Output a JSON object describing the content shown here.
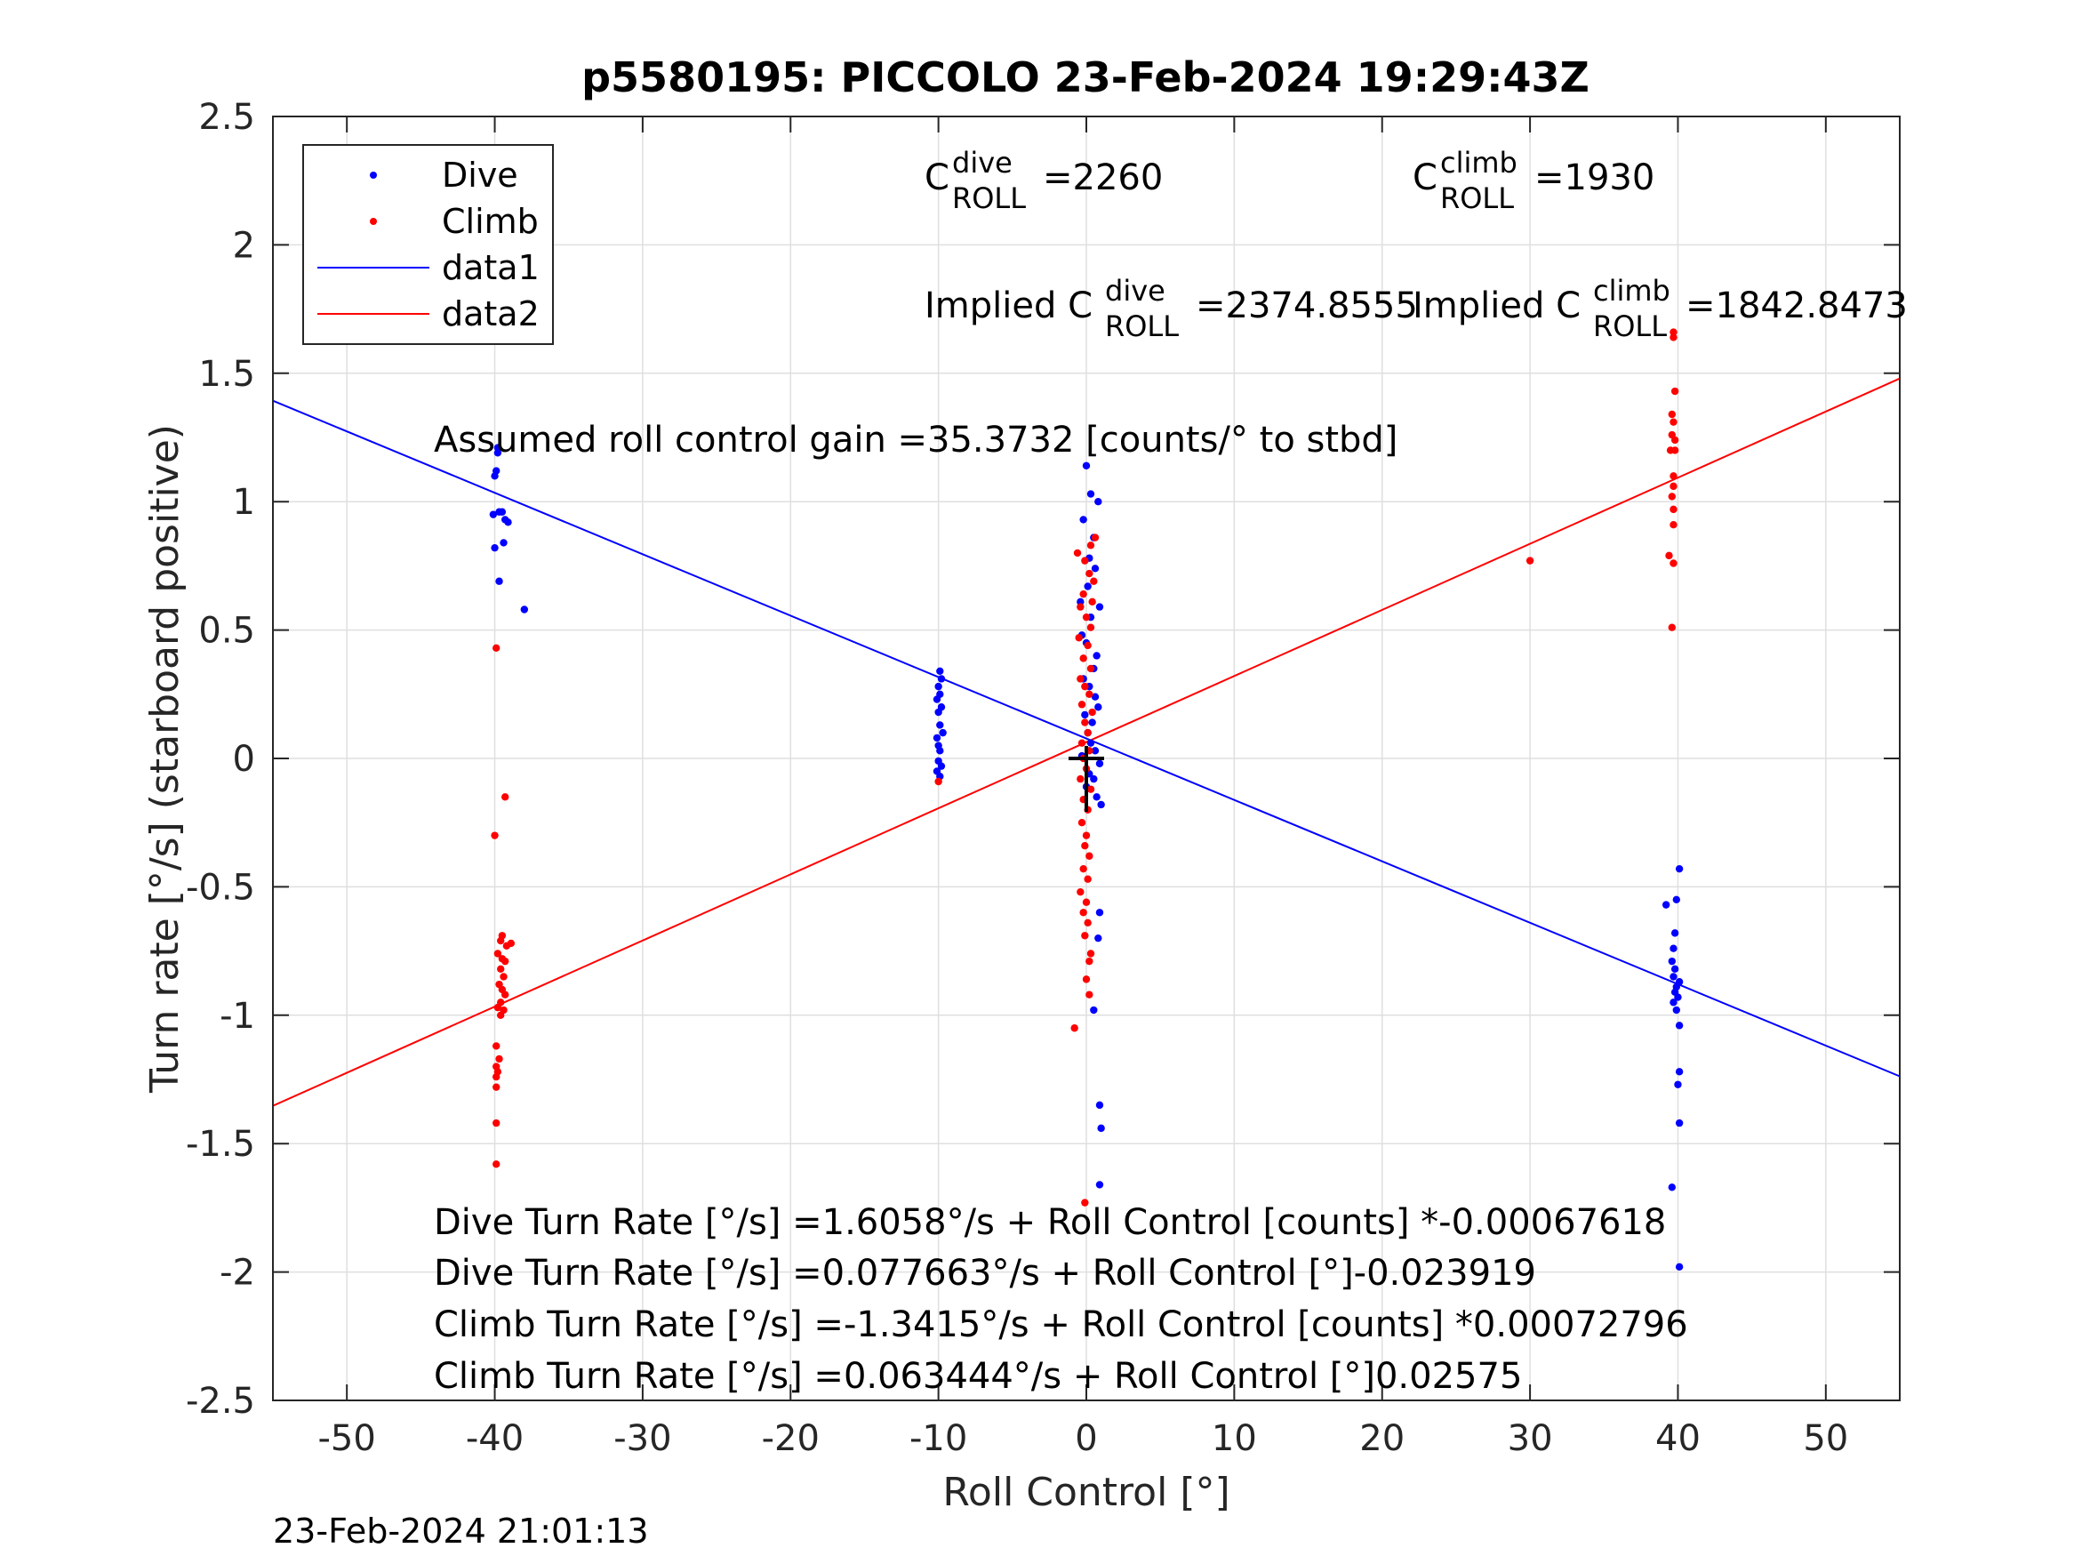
{
  "chart_data": {
    "type": "scatter",
    "title": "p5580195: PICCOLO 23-Feb-2024 19:29:43Z",
    "xlabel": "Roll Control [°]",
    "ylabel": "Turn rate [°/s] (starboard positive)",
    "xlim": [
      -55,
      55
    ],
    "ylim": [
      -2.5,
      2.5
    ],
    "xticks": [
      -50,
      -40,
      -30,
      -20,
      -10,
      0,
      10,
      20,
      30,
      40,
      50
    ],
    "xtick_labels": [
      "-50",
      "-40",
      "-30",
      "-20",
      "-10",
      "0",
      "10",
      "20",
      "30",
      "40",
      "50"
    ],
    "yticks": [
      2.5,
      2,
      1.5,
      1,
      0.5,
      0,
      -0.5,
      -1,
      -1.5,
      -2,
      -2.5
    ],
    "ytick_labels": [
      "2.5",
      "2",
      "1.5",
      "1",
      "0.5",
      "0",
      "-0.5",
      "-1",
      "-1.5",
      "-2",
      "-2.5"
    ],
    "grid": true,
    "legend_position": "top-left",
    "legend": [
      "Dive",
      "Climb",
      "data1",
      "data2"
    ],
    "series": [
      {
        "name": "Dive",
        "kind": "points",
        "color": "#0000ff",
        "points": [
          [
            -39.8,
            1.21
          ],
          [
            -39.8,
            1.19
          ],
          [
            -39.9,
            1.12
          ],
          [
            -40.0,
            1.1
          ],
          [
            -39.7,
            0.96
          ],
          [
            -40.1,
            0.95
          ],
          [
            -39.5,
            0.96
          ],
          [
            -39.3,
            0.93
          ],
          [
            -39.1,
            0.92
          ],
          [
            -39.4,
            0.84
          ],
          [
            -40.0,
            0.82
          ],
          [
            -39.7,
            0.69
          ],
          [
            -38.0,
            0.58
          ],
          [
            -9.9,
            0.34
          ],
          [
            -9.8,
            0.31
          ],
          [
            -10.0,
            0.28
          ],
          [
            -9.9,
            0.25
          ],
          [
            -10.1,
            0.23
          ],
          [
            -9.8,
            0.2
          ],
          [
            -10.0,
            0.18
          ],
          [
            -9.9,
            0.13
          ],
          [
            -9.7,
            0.1
          ],
          [
            -10.1,
            0.08
          ],
          [
            -10.0,
            0.05
          ],
          [
            -9.9,
            0.03
          ],
          [
            -10.0,
            -0.01
          ],
          [
            -9.8,
            -0.03
          ],
          [
            -10.1,
            -0.05
          ],
          [
            -9.9,
            -0.07
          ],
          [
            0.0,
            1.14
          ],
          [
            0.3,
            1.03
          ],
          [
            0.8,
            1.0
          ],
          [
            -0.2,
            0.93
          ],
          [
            0.5,
            0.86
          ],
          [
            0.2,
            0.78
          ],
          [
            0.6,
            0.74
          ],
          [
            0.1,
            0.67
          ],
          [
            -0.4,
            0.61
          ],
          [
            0.9,
            0.59
          ],
          [
            0.3,
            0.55
          ],
          [
            -0.3,
            0.48
          ],
          [
            0.0,
            0.45
          ],
          [
            0.7,
            0.4
          ],
          [
            0.5,
            0.35
          ],
          [
            -0.2,
            0.31
          ],
          [
            0.2,
            0.28
          ],
          [
            0.6,
            0.24
          ],
          [
            0.8,
            0.2
          ],
          [
            -0.1,
            0.17
          ],
          [
            0.4,
            0.14
          ],
          [
            0.1,
            0.1
          ],
          [
            0.3,
            0.06
          ],
          [
            0.6,
            0.03
          ],
          [
            -0.3,
            0.01
          ],
          [
            0.9,
            -0.02
          ],
          [
            0.2,
            -0.06
          ],
          [
            0.5,
            -0.08
          ],
          [
            0.0,
            -0.11
          ],
          [
            0.7,
            -0.15
          ],
          [
            1.0,
            -0.18
          ],
          [
            0.9,
            -0.6
          ],
          [
            0.8,
            -0.7
          ],
          [
            0.5,
            -0.98
          ],
          [
            0.9,
            -1.35
          ],
          [
            1.0,
            -1.44
          ],
          [
            0.9,
            -1.66
          ],
          [
            40.1,
            -0.43
          ],
          [
            39.9,
            -0.55
          ],
          [
            39.2,
            -0.57
          ],
          [
            39.8,
            -0.68
          ],
          [
            39.7,
            -0.74
          ],
          [
            39.6,
            -0.79
          ],
          [
            39.8,
            -0.82
          ],
          [
            39.7,
            -0.85
          ],
          [
            40.1,
            -0.87
          ],
          [
            39.9,
            -0.89
          ],
          [
            39.8,
            -0.91
          ],
          [
            40.0,
            -0.93
          ],
          [
            39.7,
            -0.95
          ],
          [
            39.9,
            -0.98
          ],
          [
            40.1,
            -1.04
          ],
          [
            40.1,
            -1.22
          ],
          [
            40.0,
            -1.27
          ],
          [
            40.1,
            -1.42
          ],
          [
            39.6,
            -1.67
          ],
          [
            40.1,
            -1.98
          ]
        ]
      },
      {
        "name": "Climb",
        "kind": "points",
        "color": "#ff0000",
        "points": [
          [
            -39.9,
            0.43
          ],
          [
            -39.3,
            -0.15
          ],
          [
            -40.0,
            -0.3
          ],
          [
            -39.5,
            -0.69
          ],
          [
            -39.6,
            -0.71
          ],
          [
            -39.2,
            -0.73
          ],
          [
            -38.9,
            -0.72
          ],
          [
            -39.8,
            -0.76
          ],
          [
            -39.5,
            -0.78
          ],
          [
            -39.3,
            -0.79
          ],
          [
            -39.6,
            -0.82
          ],
          [
            -39.4,
            -0.85
          ],
          [
            -39.7,
            -0.88
          ],
          [
            -39.5,
            -0.9
          ],
          [
            -39.3,
            -0.92
          ],
          [
            -39.6,
            -0.95
          ],
          [
            -39.8,
            -0.97
          ],
          [
            -39.4,
            -0.98
          ],
          [
            -39.6,
            -1.0
          ],
          [
            -39.9,
            -1.12
          ],
          [
            -39.7,
            -1.17
          ],
          [
            -39.9,
            -1.2
          ],
          [
            -39.8,
            -1.22
          ],
          [
            -39.9,
            -1.24
          ],
          [
            -39.9,
            -1.28
          ],
          [
            -39.9,
            -1.42
          ],
          [
            -39.9,
            -1.58
          ],
          [
            -10.0,
            -0.09
          ],
          [
            -0.6,
            0.8
          ],
          [
            0.6,
            0.86
          ],
          [
            0.3,
            0.83
          ],
          [
            -0.1,
            0.77
          ],
          [
            0.2,
            0.72
          ],
          [
            0.5,
            0.69
          ],
          [
            -0.2,
            0.64
          ],
          [
            0.4,
            0.61
          ],
          [
            -0.4,
            0.59
          ],
          [
            0.0,
            0.55
          ],
          [
            0.3,
            0.51
          ],
          [
            -0.5,
            0.47
          ],
          [
            0.1,
            0.44
          ],
          [
            -0.2,
            0.39
          ],
          [
            0.3,
            0.35
          ],
          [
            -0.4,
            0.31
          ],
          [
            -0.1,
            0.28
          ],
          [
            0.2,
            0.25
          ],
          [
            -0.3,
            0.21
          ],
          [
            0.4,
            0.18
          ],
          [
            -0.1,
            0.14
          ],
          [
            0.1,
            0.1
          ],
          [
            -0.3,
            0.06
          ],
          [
            0.2,
            0.03
          ],
          [
            -0.2,
            0.0
          ],
          [
            0.0,
            -0.04
          ],
          [
            -0.4,
            -0.08
          ],
          [
            0.3,
            -0.12
          ],
          [
            -0.2,
            -0.16
          ],
          [
            0.1,
            -0.2
          ],
          [
            -0.3,
            -0.25
          ],
          [
            0.0,
            -0.3
          ],
          [
            -0.1,
            -0.34
          ],
          [
            0.2,
            -0.38
          ],
          [
            -0.2,
            -0.43
          ],
          [
            0.1,
            -0.47
          ],
          [
            -0.4,
            -0.52
          ],
          [
            0.0,
            -0.56
          ],
          [
            -0.2,
            -0.6
          ],
          [
            0.1,
            -0.64
          ],
          [
            -0.1,
            -0.69
          ],
          [
            0.3,
            -0.76
          ],
          [
            0.2,
            -0.79
          ],
          [
            0.0,
            -0.86
          ],
          [
            0.2,
            -0.92
          ],
          [
            -0.8,
            -1.05
          ],
          [
            -0.1,
            -1.73
          ],
          [
            30.0,
            0.77
          ],
          [
            39.7,
            1.66
          ],
          [
            39.7,
            1.64
          ],
          [
            39.8,
            1.43
          ],
          [
            39.6,
            1.34
          ],
          [
            39.7,
            1.31
          ],
          [
            39.6,
            1.26
          ],
          [
            39.8,
            1.24
          ],
          [
            39.5,
            1.2
          ],
          [
            39.8,
            1.2
          ],
          [
            39.7,
            1.1
          ],
          [
            39.7,
            1.06
          ],
          [
            39.6,
            1.02
          ],
          [
            39.7,
            0.97
          ],
          [
            39.7,
            0.91
          ],
          [
            39.4,
            0.79
          ],
          [
            39.7,
            0.76
          ],
          [
            39.6,
            0.51
          ]
        ]
      },
      {
        "name": "data1",
        "kind": "line",
        "color": "#0000ff",
        "intercept": 0.077663,
        "slope": -0.023919
      },
      {
        "name": "data2",
        "kind": "line",
        "color": "#ff0000",
        "intercept": 0.063444,
        "slope": 0.02575
      }
    ],
    "marker": {
      "type": "error-cross",
      "x": 0,
      "y": 0,
      "color": "#000000"
    },
    "annotations": {
      "c_dive_base": "C",
      "c_dive_sup": "dive",
      "c_dive_sub": "ROLL",
      "c_dive_val": "=2260",
      "c_climb_base": "C",
      "c_climb_sup": "climb",
      "c_climb_sub": "ROLL",
      "c_climb_val": "=1930",
      "implied_dive_prefix": "Implied C",
      "implied_dive_sup": "dive",
      "implied_dive_sub": "ROLL",
      "implied_dive_val": "=2374.8555",
      "implied_climb_prefix": "Implied C",
      "implied_climb_sup": "climb",
      "implied_climb_sub": "ROLL",
      "implied_climb_val": "=1842.8473",
      "gain": "Assumed roll control gain =35.3732 [counts/° to stbd]",
      "eq1": "Dive Turn Rate [°/s] =1.6058°/s + Roll Control [counts] *-0.00067618",
      "eq2": "Dive Turn Rate [°/s] =0.077663°/s + Roll Control [°]-0.023919",
      "eq3": "Climb Turn Rate [°/s] =-1.3415°/s + Roll Control [counts] *0.00072796",
      "eq4": "Climb Turn Rate [°/s] =0.063444°/s + Roll Control [°]0.02575"
    }
  },
  "footer_timestamp": "23-Feb-2024 21:01:13"
}
